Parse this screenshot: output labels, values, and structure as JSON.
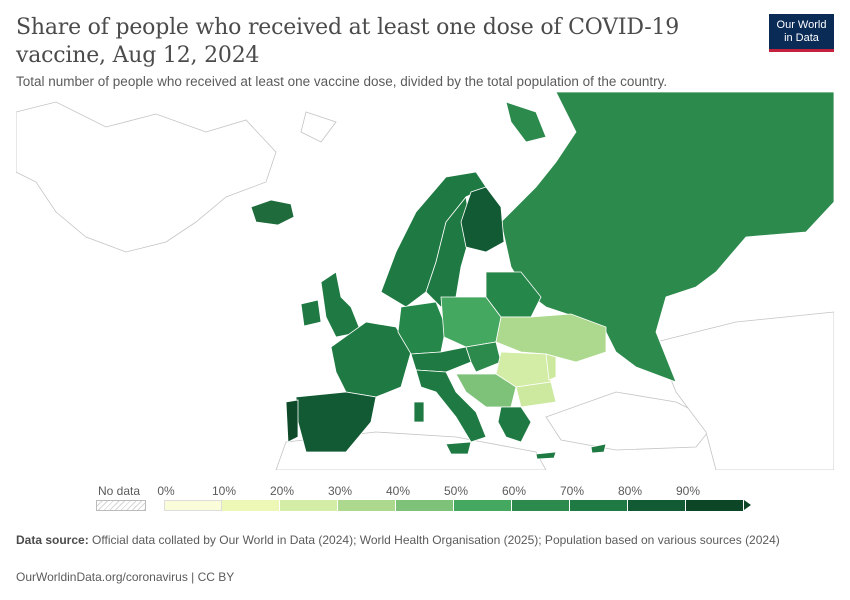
{
  "header": {
    "title": "Share of people who received at least one dose of COVID-19 vaccine, Aug 12, 2024",
    "subtitle": "Total number of people who received at least one vaccine dose, divided by the total population of the country.",
    "logo_line1": "Our World",
    "logo_line2": "in Data"
  },
  "map": {
    "type": "choropleth",
    "region": "Europe",
    "ocean_color": "#ffffff",
    "no_data_color": "#ffffff",
    "border_color": "#c4c4c4",
    "countries": [
      {
        "name": "Iceland",
        "bin": 9,
        "color": "#1f6b3c"
      },
      {
        "name": "Norway",
        "bin": 8,
        "color": "#1e7a42"
      },
      {
        "name": "Sweden",
        "bin": 8,
        "color": "#1e7a42"
      },
      {
        "name": "Finland",
        "bin": 9,
        "color": "#125a33"
      },
      {
        "name": "United Kingdom",
        "bin": 8,
        "color": "#1e7a42"
      },
      {
        "name": "Ireland",
        "bin": 8,
        "color": "#1e7a42"
      },
      {
        "name": "France",
        "bin": 8,
        "color": "#1e7a42"
      },
      {
        "name": "Spain",
        "bin": 9,
        "color": "#125a33"
      },
      {
        "name": "Portugal",
        "bin": 9,
        "color": "#0e4a2a"
      },
      {
        "name": "Italy",
        "bin": 8,
        "color": "#1e7a42"
      },
      {
        "name": "Germany",
        "bin": 7,
        "color": "#25874a"
      },
      {
        "name": "Poland",
        "bin": 5,
        "color": "#45a860"
      },
      {
        "name": "Ukraine",
        "bin": 3,
        "color": "#acd98e"
      },
      {
        "name": "Russia",
        "bin": 6,
        "color": "#2b8a4c"
      },
      {
        "name": "Belarus",
        "bin": 7,
        "color": "#25874a"
      },
      {
        "name": "Romania",
        "bin": 3,
        "color": "#acd98e"
      },
      {
        "name": "Moldova",
        "bin": 2,
        "color": "#d3eca6"
      },
      {
        "name": "Bulgaria",
        "bin": 2,
        "color": "#cde9a0"
      },
      {
        "name": "Greece",
        "bin": 7,
        "color": "#1e7a42"
      },
      {
        "name": "Turkey",
        "bin": null,
        "color": "#ffffff"
      }
    ]
  },
  "legend": {
    "no_data_label": "No data",
    "ticks": [
      "0%",
      "10%",
      "20%",
      "30%",
      "40%",
      "50%",
      "60%",
      "70%",
      "80%",
      "90%"
    ],
    "colors": [
      "#fbfdda",
      "#eef8b6",
      "#d3eca6",
      "#acd98e",
      "#7ec27a",
      "#45a860",
      "#2b8a4c",
      "#1e7a42",
      "#125a33",
      "#0c4626"
    ]
  },
  "footer": {
    "source_label": "Data source:",
    "source_text": "Official data collated by Our World in Data (2024); World Health Organisation (2025); Population based on various sources (2024)",
    "url": "OurWorldinData.org/coronavirus | CC BY"
  }
}
